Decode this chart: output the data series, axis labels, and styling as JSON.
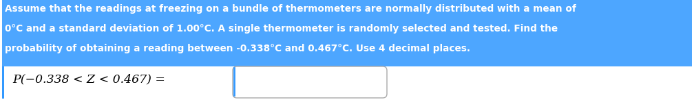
{
  "bg_color": "#ffffff",
  "highlight_color": "#4DA6FF",
  "highlight_text_color": "#ffffff",
  "normal_text_color": "#000000",
  "line1": "Assume that the readings at freezing on a bundle of thermometers are normally distributed with a mean of",
  "line2": "0°C and a standard deviation of 1.00°C. A single thermometer is randomly selected and tested. Find the",
  "line3": "probability of obtaining a reading between -0.338°C and 0.467°C. Use 4 decimal places.",
  "formula_text": "P(−0.338 < Z < 0.467) =",
  "font_size_body": 9.8,
  "font_size_formula": 12.5,
  "left_bar_color": "#3399FF",
  "figwidth": 10.08,
  "figheight": 1.49,
  "dpi": 100
}
